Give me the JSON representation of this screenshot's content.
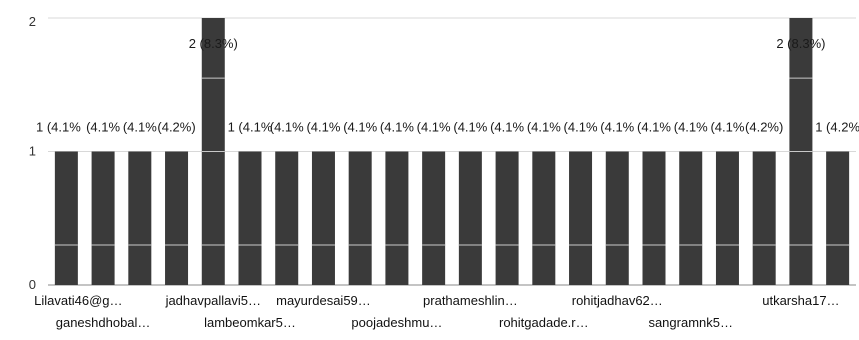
{
  "chart_data": {
    "type": "bar",
    "title": "",
    "xlabel": "",
    "ylabel": "",
    "ylim": [
      0,
      2
    ],
    "yticks": [
      0,
      1,
      2
    ],
    "grid": true,
    "legend": "none",
    "bar_color": "#3a3a3a",
    "categories": [
      "Lilavati46@g…",
      "ganeshdhobal…",
      "",
      "",
      "jadhavpallavi5…",
      "lambeomkar5…",
      "",
      "mayurdesai59…",
      "",
      "poojadeshmu…",
      "",
      "prathameshlin…",
      "",
      "rohitgadade.r…",
      "",
      "rohitjadhav62…",
      "",
      "sangramnk5…",
      "",
      "",
      "utkarsha17…",
      ""
    ],
    "values": [
      1,
      1,
      1,
      1,
      2,
      1,
      1,
      1,
      1,
      1,
      1,
      1,
      1,
      1,
      1,
      1,
      1,
      1,
      1,
      1,
      2,
      1
    ],
    "data_labels": [
      "1 (4.1%",
      "(4.1%",
      "(4.1%",
      "(4.2%)",
      "2 (8.3%)",
      "1 (4.1%",
      "(4.1%",
      "(4.1%",
      "(4.1%",
      "(4.1%",
      "(4.1%",
      "(4.1%",
      "(4.1%",
      "(4.1%",
      "(4.1%",
      "(4.1%",
      "(4.1%",
      "(4.1%",
      "(4.1%",
      "(4.2%)",
      "2 (8.3%)",
      "1 (4.2%"
    ]
  }
}
